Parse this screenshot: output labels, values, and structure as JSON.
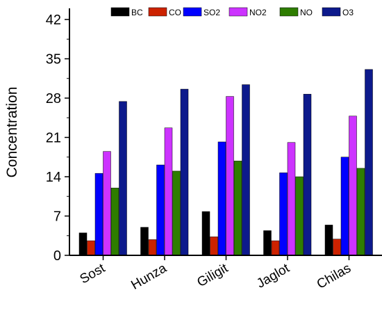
{
  "chart_data": {
    "type": "bar",
    "title": "",
    "xlabel": "",
    "ylabel": "Concentration",
    "ylim": [
      0,
      45
    ],
    "yticks": [
      0,
      7,
      14,
      21,
      28,
      35,
      42
    ],
    "categories": [
      "Sost",
      "Hunza",
      "Giligit",
      "Jaglot",
      "Chilas"
    ],
    "series": [
      {
        "name": "BC",
        "color": "#000000",
        "values": [
          4.0,
          5.0,
          7.8,
          4.4,
          5.4
        ]
      },
      {
        "name": "CO",
        "color": "#cc2200",
        "values": [
          2.6,
          2.8,
          3.3,
          2.6,
          2.9
        ]
      },
      {
        "name": "SO2",
        "color": "#0000ff",
        "values": [
          14.6,
          16.1,
          20.2,
          14.7,
          17.5
        ]
      },
      {
        "name": "NO2",
        "color": "#cc33ff",
        "values": [
          18.5,
          22.7,
          28.3,
          20.1,
          24.8
        ]
      },
      {
        "name": "NO",
        "color": "#2e7d00",
        "values": [
          12.0,
          15.0,
          16.8,
          14.0,
          15.5
        ]
      },
      {
        "name": "O3",
        "color": "#0d1a8c",
        "values": [
          27.4,
          29.6,
          30.4,
          28.7,
          33.1
        ]
      }
    ],
    "legend": "top",
    "grid": false
  }
}
